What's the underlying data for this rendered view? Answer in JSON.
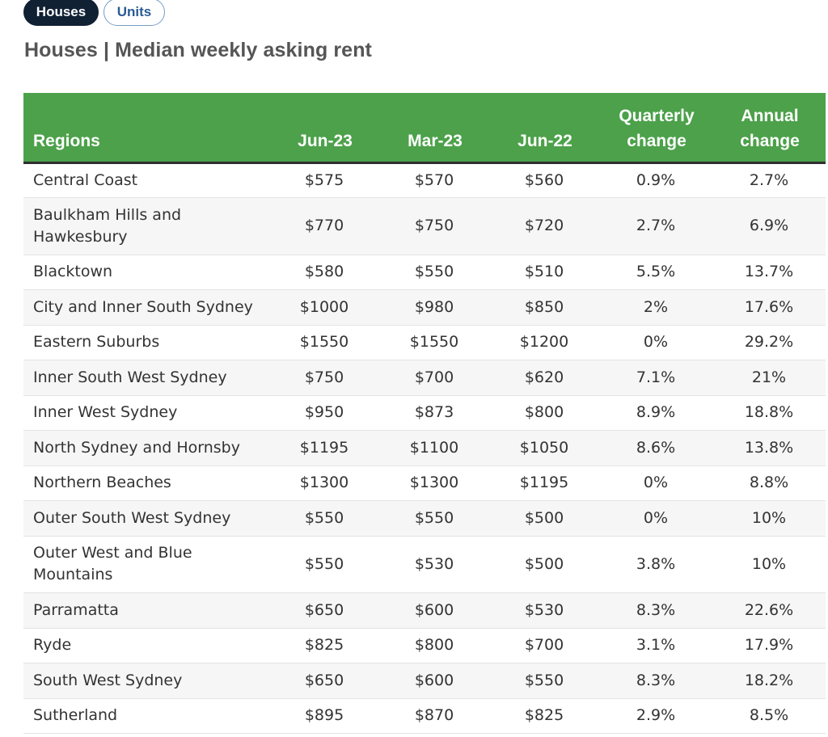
{
  "tabs": [
    {
      "label": "Houses",
      "active": true
    },
    {
      "label": "Units",
      "active": false
    }
  ],
  "page_title": "Houses | Median weekly asking rent",
  "colors": {
    "header_green": "#4ca14a",
    "active_tab": "#102133",
    "inactive_tab_text": "#2a5b95"
  },
  "table": {
    "headers": {
      "region": "Regions",
      "jun23": "Jun-23",
      "mar23": "Mar-23",
      "jun22": "Jun-22",
      "quarterly_line1": "Quarterly",
      "quarterly_line2": "change",
      "annual_line1": "Annual",
      "annual_line2": "change"
    },
    "rows": [
      {
        "region": "Central Coast",
        "jun23": "$575",
        "mar23": "$570",
        "jun22": "$560",
        "quarterly": "0.9%",
        "annual": "2.7%"
      },
      {
        "region": "Baulkham Hills and Hawkesbury",
        "jun23": "$770",
        "mar23": "$750",
        "jun22": "$720",
        "quarterly": "2.7%",
        "annual": "6.9%"
      },
      {
        "region": "Blacktown",
        "jun23": "$580",
        "mar23": "$550",
        "jun22": "$510",
        "quarterly": "5.5%",
        "annual": "13.7%"
      },
      {
        "region": "City and Inner South Sydney",
        "jun23": "$1000",
        "mar23": "$980",
        "jun22": "$850",
        "quarterly": "2%",
        "annual": "17.6%"
      },
      {
        "region": "Eastern Suburbs",
        "jun23": "$1550",
        "mar23": "$1550",
        "jun22": "$1200",
        "quarterly": "0%",
        "annual": "29.2%"
      },
      {
        "region": "Inner South West Sydney",
        "jun23": "$750",
        "mar23": "$700",
        "jun22": "$620",
        "quarterly": "7.1%",
        "annual": "21%"
      },
      {
        "region": "Inner West Sydney",
        "jun23": "$950",
        "mar23": "$873",
        "jun22": "$800",
        "quarterly": "8.9%",
        "annual": "18.8%"
      },
      {
        "region": "North Sydney and Hornsby",
        "jun23": "$1195",
        "mar23": "$1100",
        "jun22": "$1050",
        "quarterly": "8.6%",
        "annual": "13.8%"
      },
      {
        "region": "Northern Beaches",
        "jun23": "$1300",
        "mar23": "$1300",
        "jun22": "$1195",
        "quarterly": "0%",
        "annual": "8.8%"
      },
      {
        "region": "Outer South West Sydney",
        "jun23": "$550",
        "mar23": "$550",
        "jun22": "$500",
        "quarterly": "0%",
        "annual": "10%"
      },
      {
        "region": "Outer West and Blue Mountains",
        "jun23": "$550",
        "mar23": "$530",
        "jun22": "$500",
        "quarterly": "3.8%",
        "annual": "10%"
      },
      {
        "region": "Parramatta",
        "jun23": "$650",
        "mar23": "$600",
        "jun22": "$530",
        "quarterly": "8.3%",
        "annual": "22.6%"
      },
      {
        "region": "Ryde",
        "jun23": "$825",
        "mar23": "$800",
        "jun22": "$700",
        "quarterly": "3.1%",
        "annual": "17.9%"
      },
      {
        "region": "South West Sydney",
        "jun23": "$650",
        "mar23": "$600",
        "jun22": "$550",
        "quarterly": "8.3%",
        "annual": "18.2%"
      },
      {
        "region": "Sutherland",
        "jun23": "$895",
        "mar23": "$870",
        "jun22": "$825",
        "quarterly": "2.9%",
        "annual": "8.5%"
      }
    ]
  }
}
